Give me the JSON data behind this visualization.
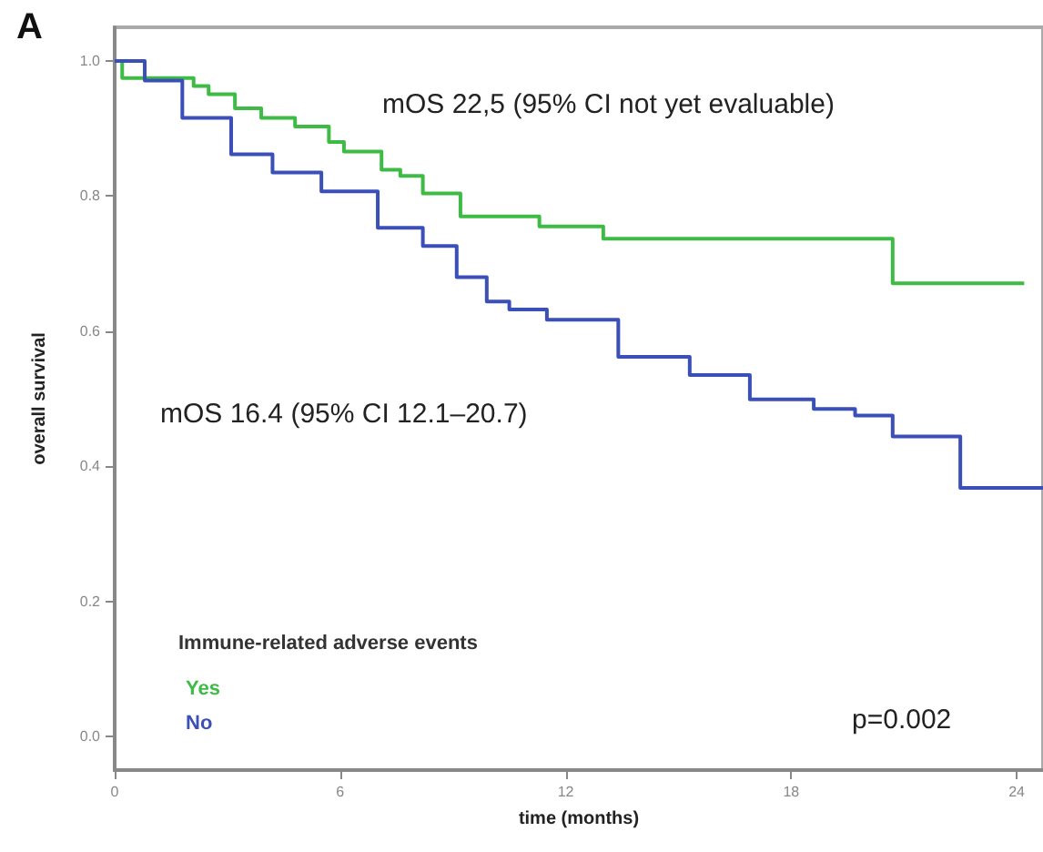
{
  "chart_data": {
    "type": "step",
    "title": "A",
    "xlabel": "time (months)",
    "ylabel": "overall survival",
    "legend_title": "Immune-related adverse events",
    "legend": "bottom left",
    "grid": false,
    "xlim": [
      0,
      24.7
    ],
    "xticks": [
      0,
      6,
      12,
      18,
      24
    ],
    "ylim": [
      -0.05,
      1.05
    ],
    "yticks": [
      {
        "value": 0,
        "label": "0.0"
      },
      0.2,
      0.4,
      0.6,
      0.8,
      {
        "value": 1,
        "label": "1.0"
      }
    ],
    "annotations": [
      "mOS 22,5 (95% CI not yet evaluable)",
      "mOS 16.4 (95% CI 12.1–20.7)",
      "p=0.002"
    ],
    "series": [
      {
        "name": "Yes",
        "color": "#3dbb45",
        "x": [
          0,
          0.2,
          2.1,
          2.5,
          3.2,
          3.9,
          4.8,
          5.7,
          6.1,
          7.1,
          7.6,
          8.2,
          9.2,
          11.3,
          13.0,
          20.7,
          24.2
        ],
        "values": [
          1.0,
          0.975,
          0.963,
          0.951,
          0.93,
          0.916,
          0.903,
          0.88,
          0.866,
          0.839,
          0.83,
          0.804,
          0.77,
          0.755,
          0.737,
          0.671,
          0.671
        ]
      },
      {
        "name": "No",
        "color": "#3a4fb8",
        "x": [
          0,
          0.8,
          1.8,
          3.1,
          4.2,
          5.5,
          7.0,
          8.2,
          9.1,
          9.9,
          10.5,
          11.5,
          13.4,
          15.3,
          16.9,
          18.6,
          19.7,
          20.7,
          22.5,
          24.7
        ],
        "values": [
          1.0,
          0.971,
          0.916,
          0.862,
          0.835,
          0.807,
          0.753,
          0.726,
          0.68,
          0.644,
          0.632,
          0.617,
          0.562,
          0.535,
          0.499,
          0.485,
          0.475,
          0.444,
          0.368,
          0.368
        ]
      }
    ]
  }
}
